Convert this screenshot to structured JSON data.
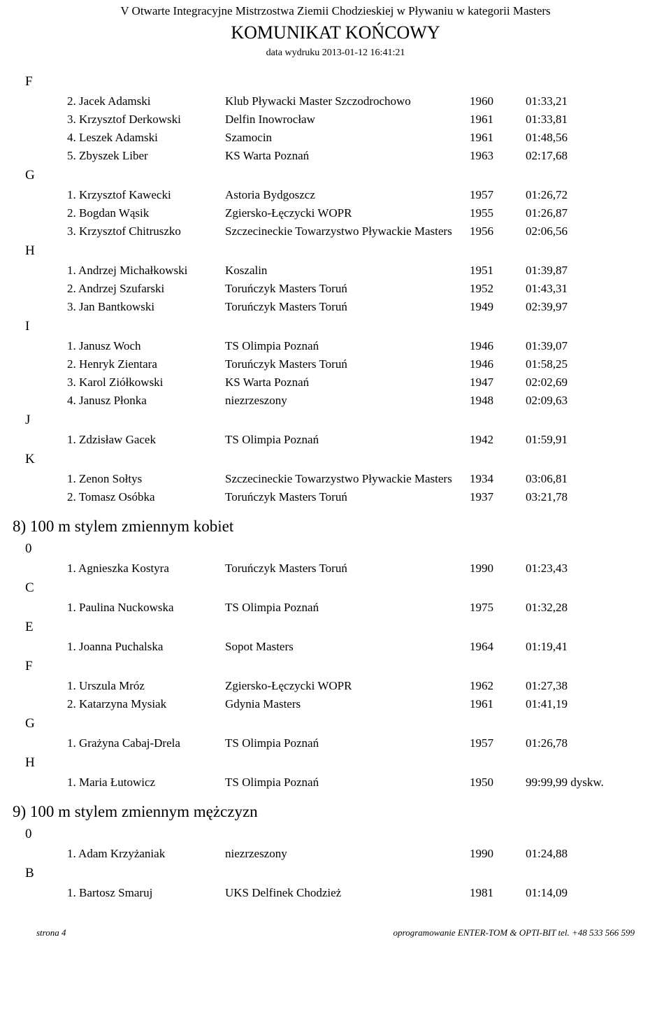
{
  "header": {
    "title1": "V Otwarte Integracyjne Mistrzostwa Ziemii Chodzieskiej w Pływaniu w kategorii Masters",
    "title2": "KOMUNIKAT KOŃCOWY",
    "date": "data wydruku 2013-01-12 16:41:21"
  },
  "sections": [
    {
      "groups": [
        {
          "letter": "F",
          "rows": [
            {
              "place": "2.",
              "name": "Jacek Adamski",
              "club": "Klub Pływacki Master Szczodrochowo",
              "year": "1960",
              "time": "01:33,21"
            },
            {
              "place": "3.",
              "name": "Krzysztof Derkowski",
              "club": "Delfin Inowrocław",
              "year": "1961",
              "time": "01:33,81"
            },
            {
              "place": "4.",
              "name": "Leszek Adamski",
              "club": "Szamocin",
              "year": "1961",
              "time": "01:48,56"
            },
            {
              "place": "5.",
              "name": "Zbyszek Liber",
              "club": "KS Warta Poznań",
              "year": "1963",
              "time": "02:17,68"
            }
          ]
        },
        {
          "letter": "G",
          "rows": [
            {
              "place": "1.",
              "name": "Krzysztof Kawecki",
              "club": "Astoria Bydgoszcz",
              "year": "1957",
              "time": "01:26,72"
            },
            {
              "place": "2.",
              "name": "Bogdan Wąsik",
              "club": "Zgiersko-Łęczycki WOPR",
              "year": "1955",
              "time": "01:26,87"
            },
            {
              "place": "3.",
              "name": "Krzysztof Chitruszko",
              "club": "Szczecineckie Towarzystwo Pływackie Masters",
              "year": "1956",
              "time": "02:06,56"
            }
          ]
        },
        {
          "letter": "H",
          "rows": [
            {
              "place": "1.",
              "name": "Andrzej Michałkowski",
              "club": "Koszalin",
              "year": "1951",
              "time": "01:39,87"
            },
            {
              "place": "2.",
              "name": "Andrzej Szufarski",
              "club": "Toruńczyk Masters Toruń",
              "year": "1952",
              "time": "01:43,31"
            },
            {
              "place": "3.",
              "name": "Jan Bantkowski",
              "club": "Toruńczyk Masters Toruń",
              "year": "1949",
              "time": "02:39,97"
            }
          ]
        },
        {
          "letter": "I",
          "rows": [
            {
              "place": "1.",
              "name": "Janusz Woch",
              "club": "TS Olimpia Poznań",
              "year": "1946",
              "time": "01:39,07"
            },
            {
              "place": "2.",
              "name": "Henryk Zientara",
              "club": "Toruńczyk Masters Toruń",
              "year": "1946",
              "time": "01:58,25"
            },
            {
              "place": "3.",
              "name": "Karol Ziółkowski",
              "club": "KS Warta Poznań",
              "year": "1947",
              "time": "02:02,69"
            },
            {
              "place": "4.",
              "name": "Janusz Płonka",
              "club": "niezrzeszony",
              "year": "1948",
              "time": "02:09,63"
            }
          ]
        },
        {
          "letter": "J",
          "rows": [
            {
              "place": "1.",
              "name": "Zdzisław Gacek",
              "club": "TS Olimpia Poznań",
              "year": "1942",
              "time": "01:59,91"
            }
          ]
        },
        {
          "letter": "K",
          "rows": [
            {
              "place": "1.",
              "name": "Zenon Sołtys",
              "club": "Szczecineckie Towarzystwo Pływackie Masters",
              "year": "1934",
              "time": "03:06,81"
            },
            {
              "place": "2.",
              "name": "Tomasz Osóbka",
              "club": "Toruńczyk Masters Toruń",
              "year": "1937",
              "time": "03:21,78"
            }
          ]
        }
      ]
    },
    {
      "heading": "8)  100 m stylem zmiennym kobiet",
      "groups": [
        {
          "letter": "0",
          "rows": [
            {
              "place": "1.",
              "name": "Agnieszka Kostyra",
              "club": "Toruńczyk Masters Toruń",
              "year": "1990",
              "time": "01:23,43"
            }
          ]
        },
        {
          "letter": "C",
          "rows": [
            {
              "place": "1.",
              "name": "Paulina Nuckowska",
              "club": "TS Olimpia Poznań",
              "year": "1975",
              "time": "01:32,28"
            }
          ]
        },
        {
          "letter": "E",
          "rows": [
            {
              "place": "1.",
              "name": "Joanna Puchalska",
              "club": "Sopot Masters",
              "year": "1964",
              "time": "01:19,41"
            }
          ]
        },
        {
          "letter": "F",
          "rows": [
            {
              "place": "1.",
              "name": "Urszula Mróz",
              "club": "Zgiersko-Łęczycki WOPR",
              "year": "1962",
              "time": "01:27,38"
            },
            {
              "place": "2.",
              "name": "Katarzyna Mysiak",
              "club": "Gdynia Masters",
              "year": "1961",
              "time": "01:41,19"
            }
          ]
        },
        {
          "letter": "G",
          "rows": [
            {
              "place": "1.",
              "name": "Grażyna Cabaj-Drela",
              "club": "TS Olimpia Poznań",
              "year": "1957",
              "time": "01:26,78"
            }
          ]
        },
        {
          "letter": "H",
          "rows": [
            {
              "place": "1.",
              "name": "Maria Łutowicz",
              "club": "TS Olimpia Poznań",
              "year": "1950",
              "time": "99:99,99 dyskw."
            }
          ]
        }
      ]
    },
    {
      "heading": "9)  100 m stylem zmiennym mężczyzn",
      "groups": [
        {
          "letter": "0",
          "rows": [
            {
              "place": "1.",
              "name": "Adam Krzyżaniak",
              "club": "niezrzeszony",
              "year": "1990",
              "time": "01:24,88"
            }
          ]
        },
        {
          "letter": "B",
          "rows": [
            {
              "place": "1.",
              "name": "Bartosz Smaruj",
              "club": "UKS Delfinek Chodzież",
              "year": "1981",
              "time": "01:14,09"
            }
          ]
        }
      ]
    }
  ],
  "footer": {
    "left": "strona 4",
    "right": "oprogramowanie ENTER-TOM & OPTI-BIT tel. +48 533 566 599"
  }
}
